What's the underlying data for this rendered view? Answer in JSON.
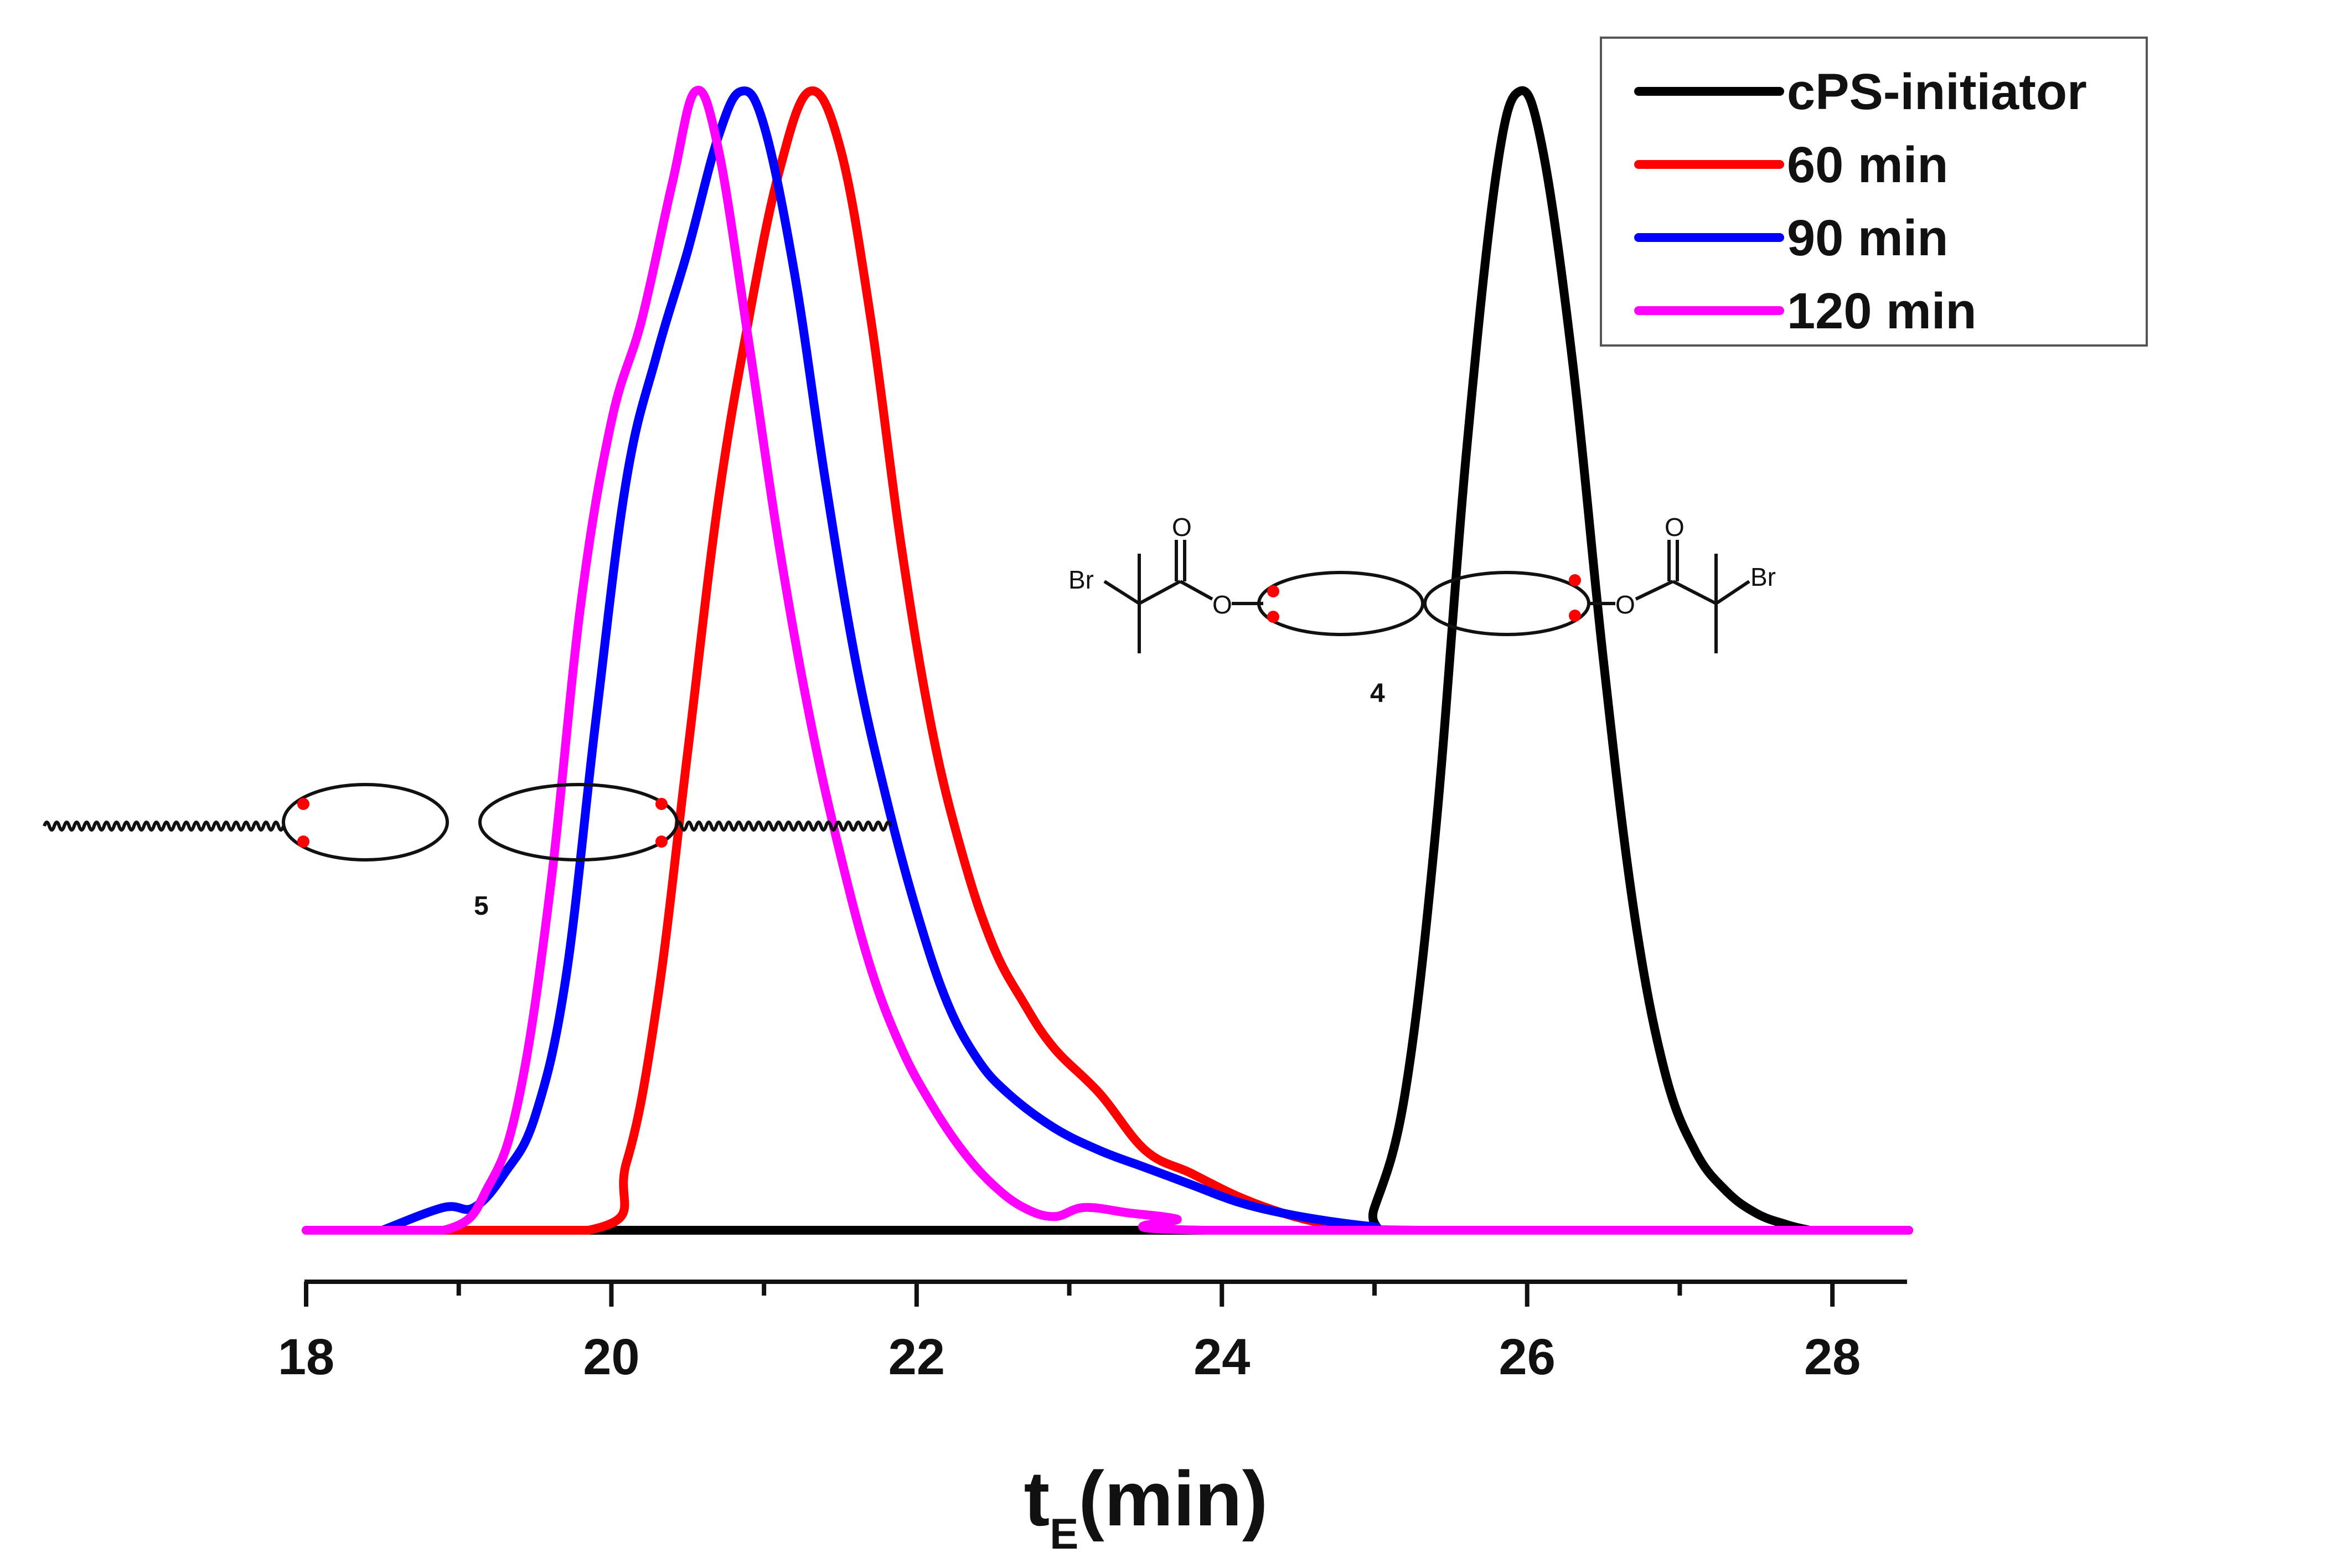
{
  "chart_data": {
    "type": "line",
    "title": "",
    "xlabel": "t",
    "xlabel_subscript": "E",
    "xlabel_unit": "(min)",
    "ylabel": "",
    "xlim": [
      18,
      28.5
    ],
    "xticks": [
      "18",
      "20",
      "22",
      "24",
      "26",
      "28"
    ],
    "ylim": [
      0,
      1
    ],
    "grid": false,
    "legend_position": "top-right",
    "series": [
      {
        "name": "cPS-initiator",
        "color": "#000000",
        "x": [
          19.8,
          23.8,
          24.9,
          25.0,
          25.2,
          25.4,
          25.6,
          25.8,
          25.95,
          26.1,
          26.3,
          26.5,
          26.7,
          26.9,
          27.1,
          27.3,
          27.5,
          27.7,
          27.85
        ],
        "y": [
          0.0,
          0.0,
          0.0,
          0.02,
          0.12,
          0.35,
          0.68,
          0.93,
          1.0,
          0.95,
          0.76,
          0.5,
          0.28,
          0.14,
          0.07,
          0.035,
          0.015,
          0.005,
          0.0
        ]
      },
      {
        "name": "60 min",
        "color": "#ff0000",
        "x": [
          18.0,
          19.85,
          20.1,
          20.3,
          20.5,
          20.7,
          20.9,
          21.1,
          21.3,
          21.5,
          21.7,
          21.9,
          22.1,
          22.3,
          22.5,
          22.7,
          22.9,
          23.2,
          23.5,
          23.8,
          24.1,
          24.4,
          24.7,
          25.0,
          25.3,
          28.5
        ],
        "y": [
          0.0,
          0.0,
          0.06,
          0.2,
          0.42,
          0.64,
          0.8,
          0.93,
          1.0,
          0.95,
          0.8,
          0.6,
          0.44,
          0.33,
          0.25,
          0.2,
          0.16,
          0.12,
          0.07,
          0.05,
          0.03,
          0.015,
          0.005,
          0.0,
          0.0,
          0.0
        ]
      },
      {
        "name": "90 min",
        "color": "#0000ff",
        "x": [
          18.5,
          18.9,
          19.1,
          19.3,
          19.5,
          19.7,
          19.9,
          20.1,
          20.3,
          20.5,
          20.7,
          20.85,
          21.0,
          21.2,
          21.4,
          21.6,
          21.8,
          22.0,
          22.2,
          22.4,
          22.6,
          22.9,
          23.2,
          23.5,
          23.8,
          24.1,
          24.4,
          24.7,
          25.0,
          25.3,
          28.5
        ],
        "y": [
          0.0,
          0.02,
          0.02,
          0.05,
          0.1,
          0.22,
          0.45,
          0.66,
          0.77,
          0.86,
          0.96,
          1.0,
          0.97,
          0.84,
          0.66,
          0.5,
          0.38,
          0.28,
          0.2,
          0.15,
          0.12,
          0.09,
          0.07,
          0.055,
          0.04,
          0.025,
          0.015,
          0.008,
          0.003,
          0.0,
          0.0
        ]
      },
      {
        "name": "120 min",
        "color": "#ff00ff",
        "x": [
          18.0,
          18.9,
          19.2,
          19.4,
          19.6,
          19.8,
          20.0,
          20.2,
          20.4,
          20.55,
          20.7,
          20.9,
          21.1,
          21.3,
          21.5,
          21.7,
          21.9,
          22.1,
          22.3,
          22.5,
          22.7,
          22.9,
          23.1,
          23.4,
          23.7,
          23.9,
          28.5
        ],
        "y": [
          0.0,
          0.0,
          0.04,
          0.12,
          0.3,
          0.55,
          0.71,
          0.8,
          0.92,
          1.0,
          0.95,
          0.78,
          0.6,
          0.45,
          0.33,
          0.23,
          0.16,
          0.11,
          0.07,
          0.04,
          0.02,
          0.012,
          0.02,
          0.015,
          0.01,
          0.0,
          0.0
        ]
      }
    ],
    "annotations": {
      "structure_4": {
        "number": "4",
        "left_br": "Br",
        "left_carbonyl_o": "O",
        "left_ester_o": "O",
        "right_br": "Br",
        "right_carbonyl_o": "O",
        "right_ester_o": "O"
      },
      "structure_5": {
        "number": "5"
      }
    }
  }
}
